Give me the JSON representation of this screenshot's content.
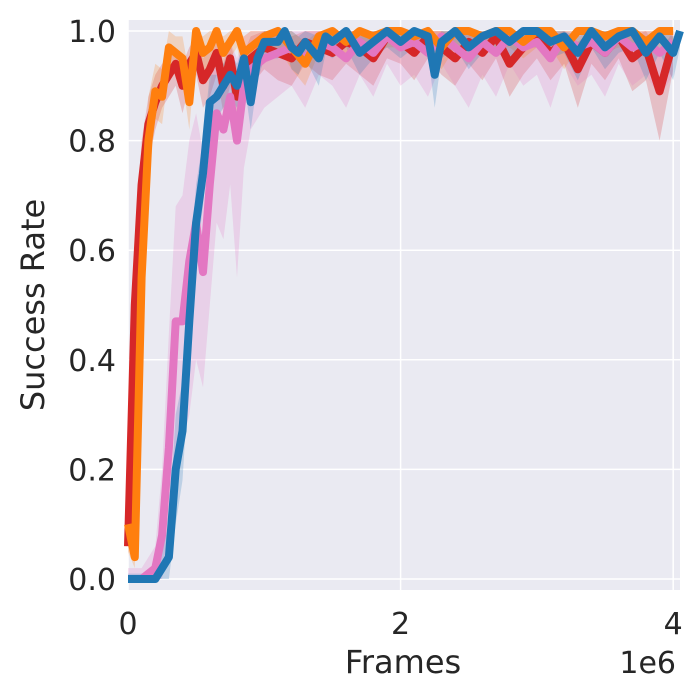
{
  "chart_data": {
    "type": "line",
    "title": "",
    "xlabel": "Frames",
    "ylabel": "Success Rate",
    "x_offset_label": "1e6",
    "xlim": [
      0,
      4.05
    ],
    "ylim": [
      -0.02,
      1.02
    ],
    "grid": true,
    "legend": "none",
    "x_ticks": [
      0,
      2,
      4
    ],
    "x_tick_labels": [
      "0",
      "2",
      "4"
    ],
    "y_ticks": [
      0.0,
      0.2,
      0.4,
      0.6,
      0.8,
      1.0
    ],
    "y_tick_labels": [
      "0.0",
      "0.2",
      "0.4",
      "0.6",
      "0.8",
      "1.0"
    ],
    "series": [
      {
        "color": "#d62728",
        "x": [
          0.0,
          0.05,
          0.1,
          0.15,
          0.2,
          0.25,
          0.3,
          0.35,
          0.4,
          0.45,
          0.5,
          0.55,
          0.6,
          0.65,
          0.7,
          0.75,
          0.8,
          0.85,
          0.9,
          1.0,
          1.1,
          1.2,
          1.3,
          1.4,
          1.5,
          1.6,
          1.7,
          1.8,
          1.9,
          2.0,
          2.1,
          2.2,
          2.3,
          2.4,
          2.5,
          2.6,
          2.7,
          2.8,
          2.9,
          3.0,
          3.1,
          3.2,
          3.3,
          3.4,
          3.5,
          3.6,
          3.7,
          3.8,
          3.9,
          4.0
        ],
        "y": [
          0.06,
          0.5,
          0.72,
          0.83,
          0.87,
          0.9,
          0.92,
          0.94,
          0.9,
          0.94,
          0.96,
          0.91,
          0.93,
          0.96,
          0.9,
          0.95,
          0.88,
          0.92,
          0.95,
          0.97,
          0.96,
          0.95,
          0.98,
          0.97,
          0.96,
          0.98,
          0.97,
          0.95,
          0.99,
          0.98,
          0.96,
          0.99,
          0.97,
          0.95,
          0.98,
          0.96,
          0.99,
          0.94,
          0.97,
          0.99,
          0.96,
          0.98,
          0.93,
          0.98,
          0.96,
          0.99,
          0.95,
          0.97,
          0.89,
          0.98
        ],
        "lower": [
          0.04,
          0.4,
          0.62,
          0.76,
          0.82,
          0.86,
          0.88,
          0.9,
          0.85,
          0.9,
          0.92,
          0.86,
          0.88,
          0.92,
          0.85,
          0.9,
          0.82,
          0.87,
          0.9,
          0.93,
          0.91,
          0.9,
          0.94,
          0.92,
          0.91,
          0.94,
          0.92,
          0.9,
          0.95,
          0.94,
          0.91,
          0.95,
          0.92,
          0.9,
          0.94,
          0.91,
          0.95,
          0.88,
          0.92,
          0.95,
          0.91,
          0.94,
          0.86,
          0.94,
          0.91,
          0.95,
          0.89,
          0.91,
          0.8,
          0.93
        ],
        "upper": [
          0.09,
          0.6,
          0.8,
          0.88,
          0.92,
          0.94,
          0.95,
          0.97,
          0.94,
          0.97,
          0.99,
          0.95,
          0.97,
          0.99,
          0.94,
          0.98,
          0.93,
          0.96,
          0.99,
          1.0,
          0.99,
          0.99,
          1.0,
          1.0,
          0.99,
          1.0,
          1.0,
          0.99,
          1.0,
          1.0,
          0.99,
          1.0,
          1.0,
          0.99,
          1.0,
          0.99,
          1.0,
          0.98,
          1.0,
          1.0,
          0.99,
          1.0,
          0.98,
          1.0,
          0.99,
          1.0,
          0.99,
          1.0,
          0.96,
          1.0
        ]
      },
      {
        "color": "#e377c2",
        "x": [
          0.0,
          0.1,
          0.2,
          0.25,
          0.3,
          0.35,
          0.4,
          0.45,
          0.5,
          0.55,
          0.6,
          0.65,
          0.7,
          0.75,
          0.8,
          0.85,
          0.9,
          1.0,
          1.1,
          1.2,
          1.3,
          1.4,
          1.5,
          1.6,
          1.7,
          1.8,
          1.9,
          2.0,
          2.1,
          2.2,
          2.3,
          2.4,
          2.5,
          2.6,
          2.7,
          2.8,
          2.9,
          3.0,
          3.1,
          3.2,
          3.3,
          3.4,
          3.5,
          3.6,
          3.7,
          3.8,
          3.9,
          4.0
        ],
        "y": [
          0.0,
          0.0,
          0.02,
          0.08,
          0.24,
          0.47,
          0.47,
          0.58,
          0.65,
          0.56,
          0.72,
          0.85,
          0.82,
          0.88,
          0.8,
          0.9,
          0.93,
          0.95,
          0.96,
          0.97,
          0.95,
          0.98,
          0.97,
          0.95,
          0.98,
          0.96,
          0.99,
          0.97,
          0.98,
          0.96,
          0.99,
          0.97,
          0.95,
          0.98,
          0.96,
          0.99,
          0.97,
          0.98,
          0.95,
          0.99,
          0.97,
          0.98,
          0.96,
          0.99,
          0.97,
          0.98,
          0.96,
          0.98
        ],
        "lower": [
          0.0,
          0.0,
          0.0,
          0.0,
          0.08,
          0.22,
          0.25,
          0.3,
          0.4,
          0.35,
          0.5,
          0.65,
          0.62,
          0.72,
          0.55,
          0.75,
          0.82,
          0.86,
          0.88,
          0.9,
          0.86,
          0.92,
          0.9,
          0.86,
          0.92,
          0.88,
          0.94,
          0.9,
          0.92,
          0.88,
          0.94,
          0.9,
          0.86,
          0.92,
          0.88,
          0.94,
          0.9,
          0.92,
          0.86,
          0.94,
          0.9,
          0.92,
          0.88,
          0.94,
          0.9,
          0.92,
          0.88,
          0.92
        ],
        "upper": [
          0.02,
          0.02,
          0.06,
          0.2,
          0.45,
          0.68,
          0.7,
          0.8,
          0.85,
          0.78,
          0.9,
          0.97,
          0.95,
          0.98,
          0.95,
          0.99,
          1.0,
          1.0,
          1.0,
          1.0,
          1.0,
          1.0,
          1.0,
          1.0,
          1.0,
          1.0,
          1.0,
          1.0,
          1.0,
          1.0,
          1.0,
          1.0,
          1.0,
          1.0,
          1.0,
          1.0,
          1.0,
          1.0,
          1.0,
          1.0,
          1.0,
          1.0,
          1.0,
          1.0,
          1.0,
          1.0,
          1.0,
          1.0
        ]
      },
      {
        "color": "#ff7f0e",
        "x": [
          0.0,
          0.05,
          0.1,
          0.15,
          0.2,
          0.25,
          0.3,
          0.35,
          0.4,
          0.45,
          0.5,
          0.55,
          0.6,
          0.65,
          0.7,
          0.75,
          0.8,
          0.85,
          0.9,
          1.0,
          1.1,
          1.2,
          1.3,
          1.4,
          1.5,
          1.6,
          1.7,
          1.8,
          1.9,
          2.0,
          2.1,
          2.2,
          2.3,
          2.4,
          2.5,
          2.6,
          2.7,
          2.8,
          2.9,
          3.0,
          3.1,
          3.2,
          3.3,
          3.4,
          3.5,
          3.6,
          3.7,
          3.8,
          3.9,
          4.0
        ],
        "y": [
          0.1,
          0.04,
          0.55,
          0.8,
          0.89,
          0.88,
          0.97,
          0.96,
          0.95,
          0.87,
          1.0,
          0.96,
          0.97,
          1.0,
          0.96,
          0.98,
          1.0,
          0.96,
          0.97,
          0.99,
          1.0,
          0.97,
          0.94,
          0.99,
          1.0,
          0.98,
          1.0,
          0.99,
          1.0,
          1.0,
          0.99,
          1.0,
          0.97,
          1.0,
          1.0,
          0.99,
          1.0,
          1.0,
          0.98,
          1.0,
          1.0,
          0.97,
          1.0,
          1.0,
          0.99,
          1.0,
          1.0,
          0.98,
          1.0,
          1.0
        ],
        "lower": [
          0.05,
          0.02,
          0.45,
          0.72,
          0.84,
          0.83,
          0.93,
          0.92,
          0.91,
          0.82,
          0.97,
          0.92,
          0.93,
          0.97,
          0.92,
          0.95,
          0.97,
          0.92,
          0.93,
          0.96,
          0.97,
          0.93,
          0.9,
          0.96,
          0.97,
          0.95,
          0.97,
          0.96,
          0.97,
          0.97,
          0.96,
          0.97,
          0.93,
          0.97,
          0.97,
          0.96,
          0.97,
          0.97,
          0.95,
          0.97,
          0.97,
          0.93,
          0.97,
          0.97,
          0.96,
          0.97,
          0.97,
          0.95,
          0.97,
          0.97
        ],
        "upper": [
          0.13,
          0.08,
          0.65,
          0.88,
          0.94,
          0.93,
          1.0,
          0.99,
          0.99,
          0.92,
          1.0,
          0.99,
          1.0,
          1.0,
          0.99,
          1.0,
          1.0,
          0.99,
          1.0,
          1.0,
          1.0,
          1.0,
          0.98,
          1.0,
          1.0,
          1.0,
          1.0,
          1.0,
          1.0,
          1.0,
          1.0,
          1.0,
          1.0,
          1.0,
          1.0,
          1.0,
          1.0,
          1.0,
          1.0,
          1.0,
          1.0,
          1.0,
          1.0,
          1.0,
          1.0,
          1.0,
          1.0,
          1.0,
          1.0,
          1.0
        ]
      },
      {
        "color": "#1f77b4",
        "x": [
          0.0,
          0.1,
          0.2,
          0.25,
          0.3,
          0.35,
          0.4,
          0.45,
          0.5,
          0.55,
          0.6,
          0.65,
          0.7,
          0.75,
          0.8,
          0.85,
          0.9,
          0.95,
          1.0,
          1.1,
          1.15,
          1.2,
          1.25,
          1.3,
          1.4,
          1.45,
          1.5,
          1.6,
          1.7,
          1.8,
          1.9,
          2.0,
          2.1,
          2.2,
          2.25,
          2.3,
          2.4,
          2.5,
          2.6,
          2.7,
          2.8,
          2.9,
          3.0,
          3.1,
          3.2,
          3.3,
          3.4,
          3.5,
          3.6,
          3.7,
          3.8,
          3.9,
          4.0,
          4.05
        ],
        "y": [
          0.0,
          0.0,
          0.0,
          0.02,
          0.04,
          0.2,
          0.27,
          0.47,
          0.65,
          0.74,
          0.87,
          0.88,
          0.9,
          0.92,
          0.9,
          0.95,
          0.87,
          0.95,
          0.98,
          0.98,
          1.0,
          0.97,
          0.96,
          0.98,
          0.95,
          0.99,
          0.98,
          1.0,
          0.96,
          0.98,
          1.0,
          0.98,
          1.0,
          0.99,
          0.92,
          0.98,
          1.0,
          0.97,
          0.99,
          1.0,
          0.98,
          1.0,
          1.0,
          0.98,
          0.99,
          0.96,
          1.0,
          0.97,
          0.99,
          1.0,
          0.96,
          0.99,
          0.96,
          1.0
        ],
        "lower": [
          0.0,
          0.0,
          0.0,
          0.0,
          0.0,
          0.1,
          0.18,
          0.38,
          0.58,
          0.68,
          0.82,
          0.84,
          0.86,
          0.88,
          0.86,
          0.91,
          0.82,
          0.91,
          0.95,
          0.95,
          0.97,
          0.93,
          0.92,
          0.95,
          0.9,
          0.96,
          0.95,
          0.97,
          0.92,
          0.95,
          0.97,
          0.95,
          0.97,
          0.96,
          0.86,
          0.95,
          0.97,
          0.93,
          0.96,
          0.97,
          0.95,
          0.97,
          0.97,
          0.95,
          0.96,
          0.91,
          0.97,
          0.93,
          0.96,
          0.97,
          0.91,
          0.96,
          0.91,
          0.97
        ],
        "upper": [
          0.01,
          0.01,
          0.01,
          0.05,
          0.1,
          0.3,
          0.36,
          0.56,
          0.72,
          0.8,
          0.92,
          0.92,
          0.94,
          0.96,
          0.94,
          0.98,
          0.92,
          0.98,
          1.0,
          1.0,
          1.0,
          1.0,
          0.99,
          1.0,
          0.99,
          1.0,
          1.0,
          1.0,
          0.99,
          1.0,
          1.0,
          1.0,
          1.0,
          1.0,
          0.97,
          1.0,
          1.0,
          1.0,
          1.0,
          1.0,
          1.0,
          1.0,
          1.0,
          1.0,
          1.0,
          0.99,
          1.0,
          1.0,
          1.0,
          1.0,
          0.99,
          1.0,
          0.99,
          1.0
        ]
      }
    ]
  }
}
